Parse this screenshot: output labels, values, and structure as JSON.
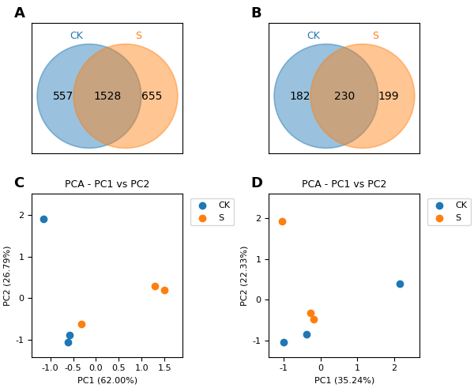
{
  "chart_data": [
    {
      "type": "venn",
      "annotations": [
        "A"
      ],
      "series": [
        {
          "name": "CK"
        },
        {
          "name": "S"
        }
      ],
      "values": [
        557,
        1528,
        655
      ]
    },
    {
      "type": "venn",
      "annotations": [
        "B"
      ],
      "series": [
        {
          "name": "CK"
        },
        {
          "name": "S"
        }
      ],
      "values": [
        182,
        230,
        199
      ]
    },
    {
      "type": "scatter",
      "annotations": [
        "C"
      ],
      "title": "PCA - PC1 vs PC2",
      "x_label": "PC1 (62.00%)",
      "y_label": "PC2 (26.79%)",
      "series": [
        {
          "name": "CK",
          "x": [
            -1.15,
            -0.58,
            -0.62
          ],
          "values": [
            1.9,
            -0.88,
            -1.05
          ]
        },
        {
          "name": "S",
          "x": [
            -0.32,
            1.28,
            1.5
          ],
          "values": [
            -0.62,
            0.3,
            0.2
          ]
        }
      ],
      "xlim": [
        -1.4,
        1.9
      ],
      "ylim": [
        -1.4,
        2.5
      ],
      "xticks": [
        -1.0,
        -0.5,
        0.0,
        0.5,
        1.0,
        1.5
      ],
      "yticks": [
        -1,
        0,
        1,
        2
      ],
      "legend": "upper left",
      "grid": false
    },
    {
      "type": "scatter",
      "annotations": [
        "D"
      ],
      "title": "PCA - PC1 vs PC2",
      "x_label": "PC1 (35.24%)",
      "y_label": "PC2 (22.33%)",
      "series": [
        {
          "name": "CK",
          "x": [
            -1.0,
            -0.38,
            2.15
          ],
          "values": [
            -1.05,
            -0.85,
            0.4
          ]
        },
        {
          "name": "S",
          "x": [
            -1.05,
            -0.28,
            -0.18
          ],
          "values": [
            1.92,
            -0.32,
            -0.48
          ]
        }
      ],
      "xlim": [
        -1.4,
        2.7
      ],
      "ylim": [
        -1.4,
        2.6
      ],
      "xticks": [
        -1,
        0,
        1,
        2
      ],
      "yticks": [
        -1,
        0,
        1,
        2
      ],
      "legend": "upper left",
      "grid": false
    }
  ]
}
